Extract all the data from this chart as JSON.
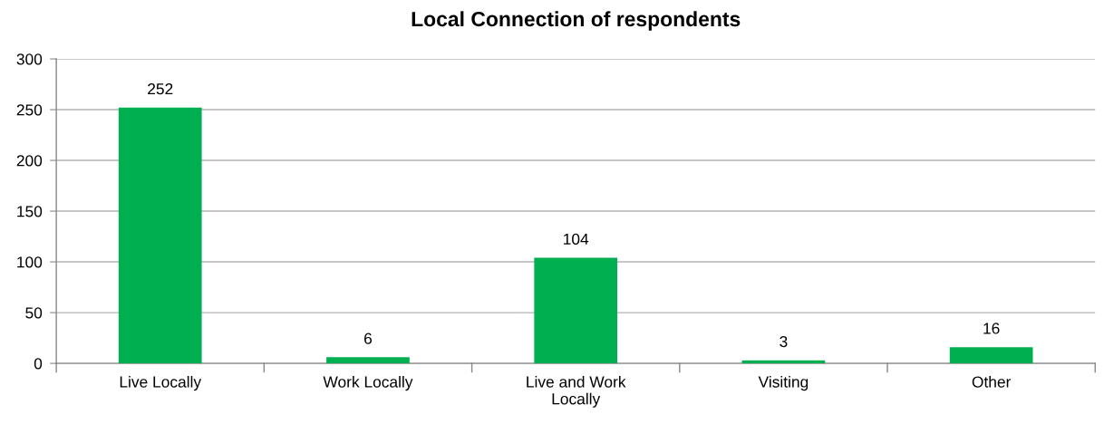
{
  "chart_data": {
    "type": "bar",
    "title": "Local Connection of respondents",
    "categories": [
      "Live Locally",
      "Work Locally",
      "Live and Work Locally",
      "Visiting",
      "Other"
    ],
    "values": [
      252,
      6,
      104,
      3,
      16
    ],
    "color": "#00b050",
    "ylim": [
      0,
      300
    ],
    "yticks": [
      0,
      50,
      100,
      150,
      200,
      250,
      300
    ],
    "grid": "y",
    "data_labels": true
  }
}
